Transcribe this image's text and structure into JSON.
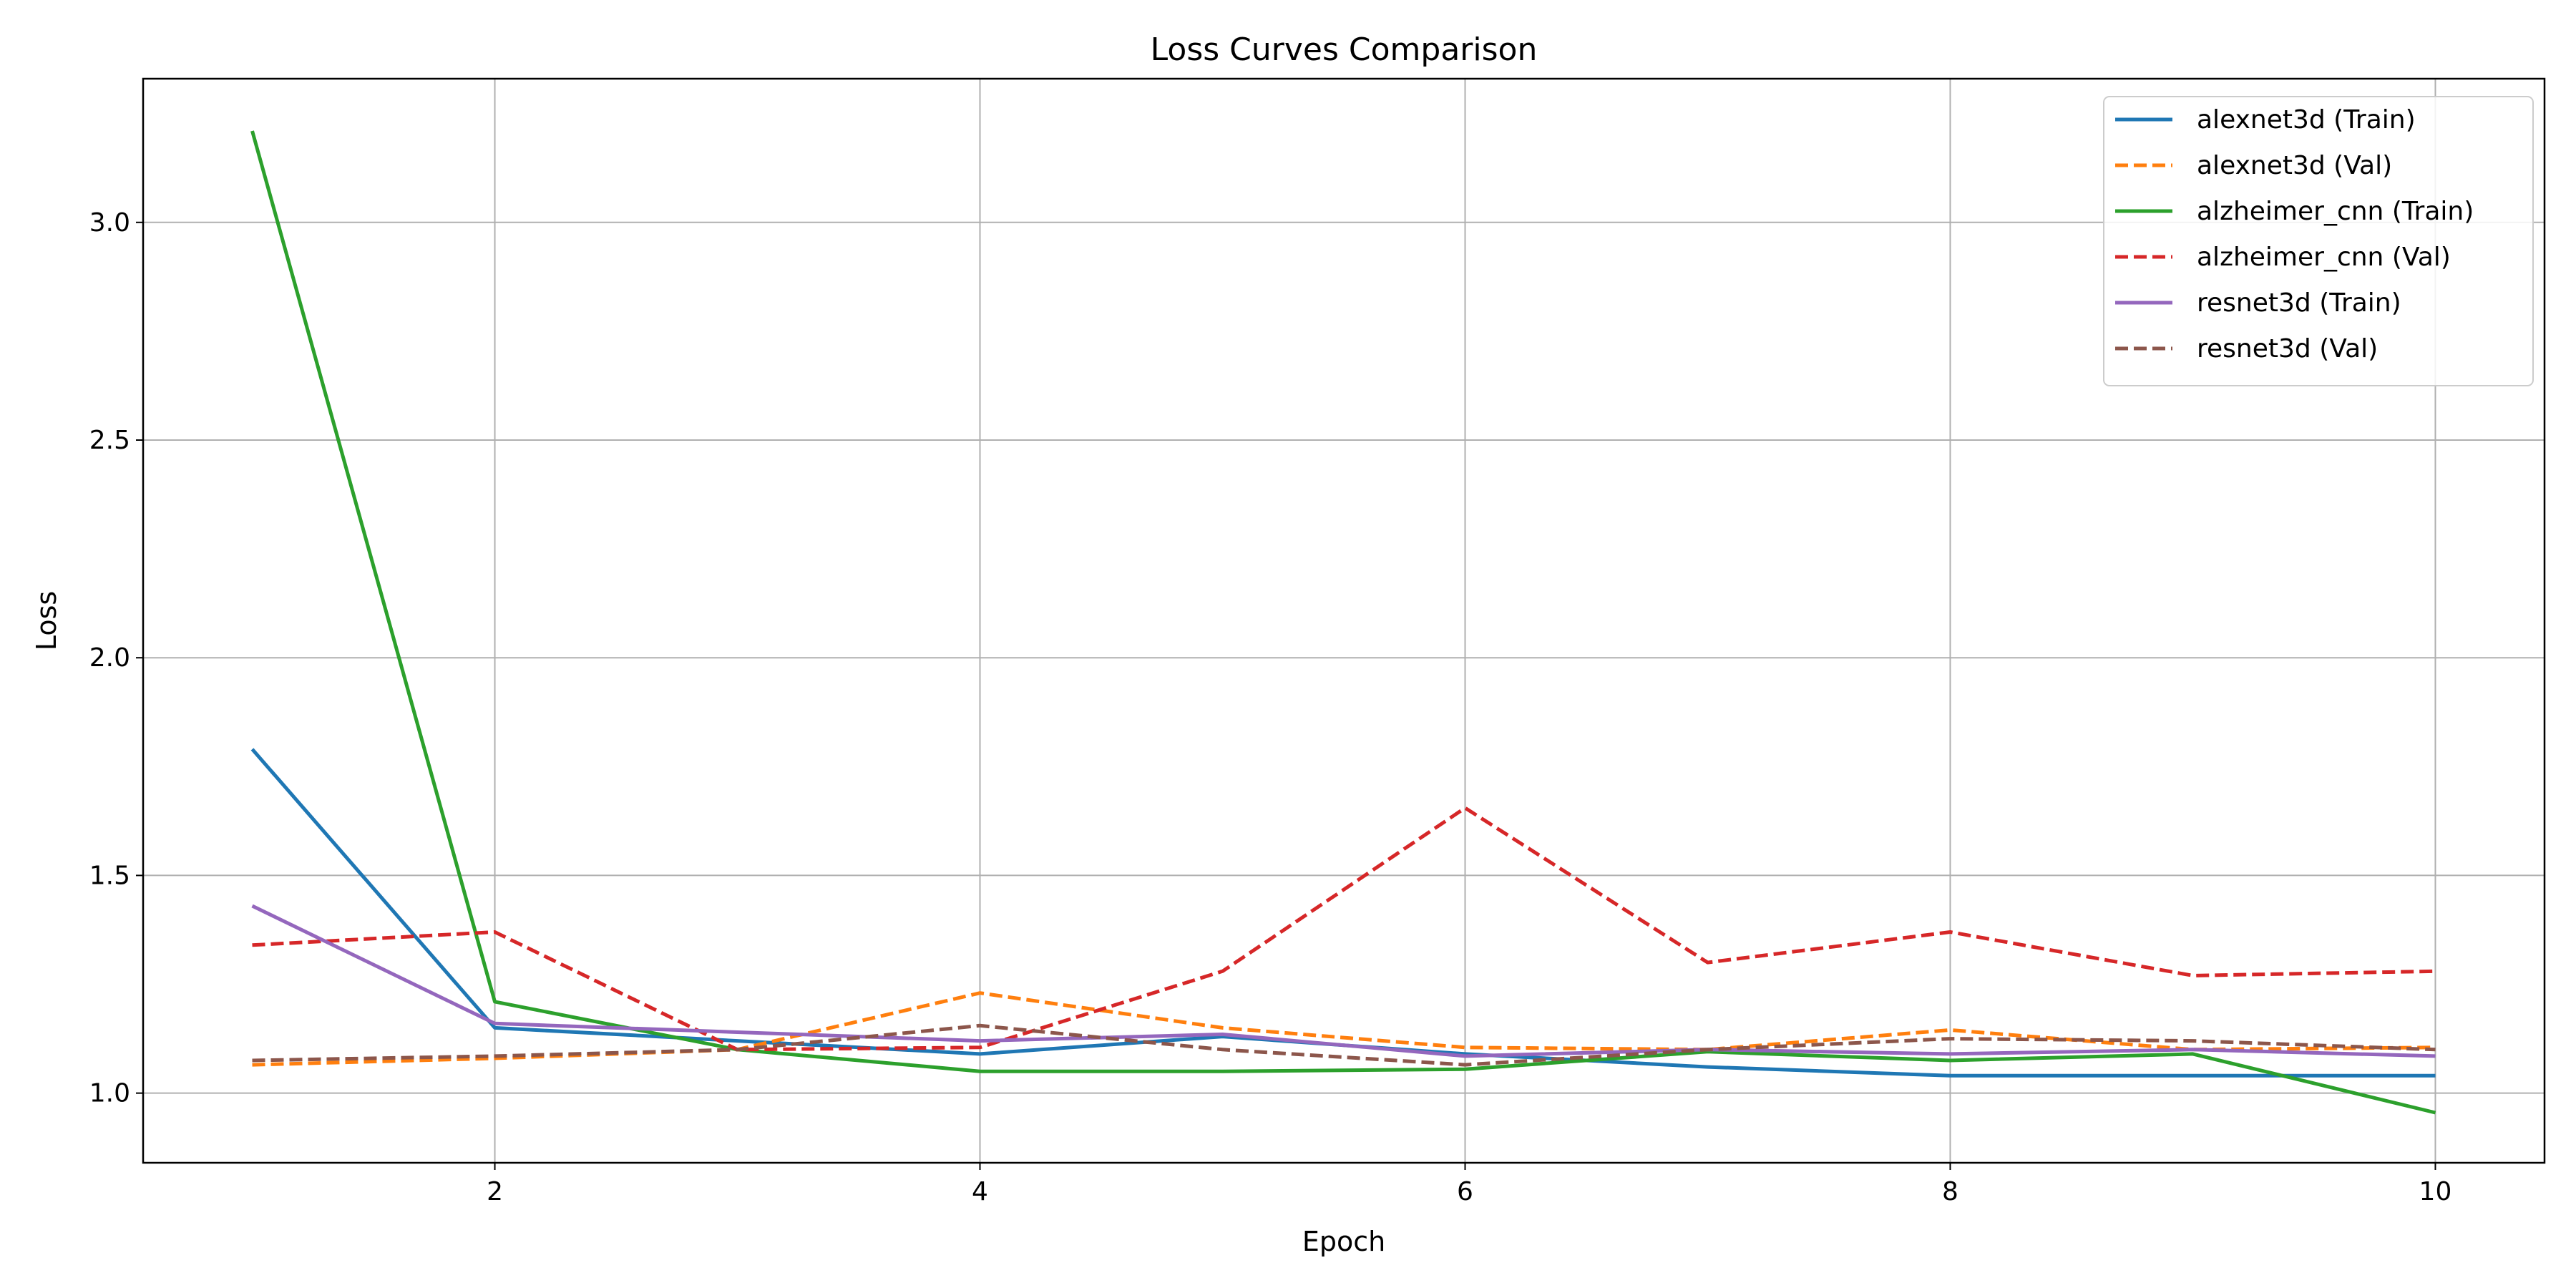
{
  "chart_data": {
    "type": "line",
    "title": "Loss Curves Comparison",
    "xlabel": "Epoch",
    "ylabel": "Loss",
    "xlim": [
      0.55,
      10.45
    ],
    "ylim": [
      0.84,
      3.33
    ],
    "xticks": [
      2,
      4,
      6,
      8,
      10
    ],
    "yticks": [
      1.0,
      1.5,
      2.0,
      2.5,
      3.0
    ],
    "xtick_labels": [
      "2",
      "4",
      "6",
      "8",
      "10"
    ],
    "ytick_labels": [
      "1.0",
      "1.5",
      "2.0",
      "2.5",
      "3.0"
    ],
    "grid": true,
    "legend_position": "top-right",
    "x": [
      1,
      2,
      3,
      4,
      5,
      6,
      7,
      8,
      9,
      10
    ],
    "series": [
      {
        "name": "alexnet3d (Train)",
        "color": "#1f77b4",
        "dash": "solid",
        "values": [
          1.79,
          1.15,
          1.12,
          1.09,
          1.13,
          1.09,
          1.06,
          1.04,
          1.04,
          1.04
        ]
      },
      {
        "name": "alexnet3d (Val)",
        "color": "#ff7f0e",
        "dash": "dashed",
        "values": [
          1.065,
          1.08,
          1.1,
          1.23,
          1.15,
          1.105,
          1.1,
          1.145,
          1.1,
          1.105
        ]
      },
      {
        "name": "alzheimer_cnn (Train)",
        "color": "#2ca02c",
        "dash": "solid",
        "values": [
          3.21,
          1.21,
          1.1,
          1.05,
          1.05,
          1.055,
          1.095,
          1.075,
          1.09,
          0.955
        ]
      },
      {
        "name": "alzheimer_cnn (Val)",
        "color": "#d62728",
        "dash": "dashed",
        "values": [
          1.34,
          1.37,
          1.1,
          1.105,
          1.28,
          1.655,
          1.3,
          1.37,
          1.27,
          1.28
        ]
      },
      {
        "name": "resnet3d (Train)",
        "color": "#9467bd",
        "dash": "solid",
        "values": [
          1.43,
          1.16,
          1.14,
          1.12,
          1.135,
          1.085,
          1.1,
          1.09,
          1.1,
          1.085
        ]
      },
      {
        "name": "resnet3d (Val)",
        "color": "#8c564b",
        "dash": "dashed",
        "values": [
          1.075,
          1.085,
          1.1,
          1.155,
          1.1,
          1.065,
          1.1,
          1.125,
          1.12,
          1.1
        ]
      }
    ]
  }
}
